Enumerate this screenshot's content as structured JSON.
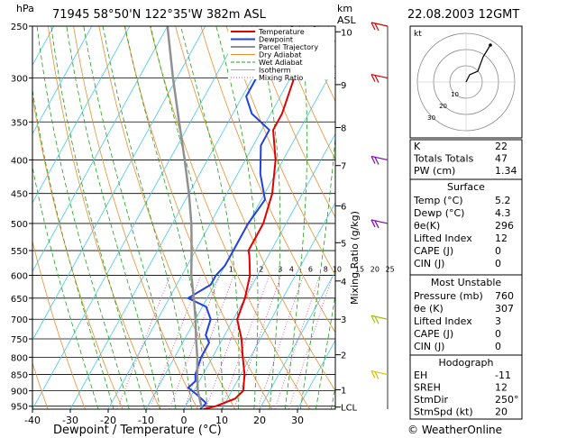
{
  "header": {
    "unit_pressure": "hPa",
    "station_line": "71945  58°50'N  122°35'W  382m  ASL",
    "unit_height": "km",
    "unit_height_2": "ASL",
    "datetime": "22.08.2003  12GMT"
  },
  "footer": {
    "xlabel": "Dewpoint / Temperature (°C)",
    "credit": "© WeatherOnline"
  },
  "chart_data": {
    "type": "line",
    "title": "71945  58°50'N  122°35'W  382m  ASL",
    "xlabel": "Dewpoint / Temperature (°C)",
    "ylabel": "hPa",
    "right_axis_label": "km ASL",
    "mixing_axis_label": "Mixing Ratio (g/kg)",
    "xlim": [
      -40,
      40
    ],
    "ylim": [
      960,
      250
    ],
    "y_scale": "log",
    "skew": true,
    "x_ticks": [
      -40,
      -30,
      -20,
      -10,
      0,
      10,
      20,
      30
    ],
    "p_ticks": [
      250,
      300,
      350,
      400,
      450,
      500,
      550,
      600,
      650,
      700,
      750,
      800,
      850,
      900,
      950
    ],
    "km_ticks": [
      {
        "label": "10",
        "p": 255
      },
      {
        "label": "9",
        "p": 307
      },
      {
        "label": "8",
        "p": 357
      },
      {
        "label": "7",
        "p": 408
      },
      {
        "label": "6",
        "p": 470
      },
      {
        "label": "5",
        "p": 535
      },
      {
        "label": "4",
        "p": 612
      },
      {
        "label": "3",
        "p": 700
      },
      {
        "label": "2",
        "p": 793
      },
      {
        "label": "1",
        "p": 897
      },
      {
        "label": "LCL",
        "p": 953
      }
    ],
    "mixing_ratio_labels": [
      {
        "label": "1",
        "x": -7
      },
      {
        "label": "2",
        "x": 1
      },
      {
        "label": "3",
        "x": 6
      },
      {
        "label": "4",
        "x": 9
      },
      {
        "label": "6",
        "x": 14
      },
      {
        "label": "8",
        "x": 18
      },
      {
        "label": "10",
        "x": 21
      },
      {
        "label": "15",
        "x": 27
      },
      {
        "label": "20",
        "x": 31
      },
      {
        "label": "25",
        "x": 35
      }
    ],
    "legend": [
      "Temperature",
      "Dewpoint",
      "Parcel Trajectory",
      "Dry Adiabat",
      "Wet Adiabat",
      "Isotherm",
      "Mixing Ratio"
    ],
    "series": [
      {
        "name": "Temperature",
        "color": "#e00000",
        "points": [
          {
            "p": 960,
            "x": 5.2
          },
          {
            "p": 950,
            "x": 8
          },
          {
            "p": 925,
            "x": 12
          },
          {
            "p": 900,
            "x": 13
          },
          {
            "p": 850,
            "x": 11
          },
          {
            "p": 800,
            "x": 8
          },
          {
            "p": 750,
            "x": 5
          },
          {
            "p": 700,
            "x": 1
          },
          {
            "p": 650,
            "x": 0
          },
          {
            "p": 600,
            "x": -2
          },
          {
            "p": 560,
            "x": -5
          },
          {
            "p": 550,
            "x": -6
          },
          {
            "p": 500,
            "x": -6
          },
          {
            "p": 450,
            "x": -8
          },
          {
            "p": 400,
            "x": -12
          },
          {
            "p": 360,
            "x": -17
          },
          {
            "p": 340,
            "x": -17
          },
          {
            "p": 300,
            "x": -19
          },
          {
            "p": 270,
            "x": -22
          },
          {
            "p": 250,
            "x": -21
          }
        ]
      },
      {
        "name": "Dewpoint",
        "color": "#2040e0",
        "points": [
          {
            "p": 960,
            "x": 4.3
          },
          {
            "p": 940,
            "x": 5
          },
          {
            "p": 910,
            "x": 1
          },
          {
            "p": 890,
            "x": -2
          },
          {
            "p": 870,
            "x": -1
          },
          {
            "p": 850,
            "x": -2
          },
          {
            "p": 800,
            "x": -3
          },
          {
            "p": 760,
            "x": -3
          },
          {
            "p": 740,
            "x": -5
          },
          {
            "p": 700,
            "x": -6
          },
          {
            "p": 670,
            "x": -9
          },
          {
            "p": 650,
            "x": -15
          },
          {
            "p": 620,
            "x": -11
          },
          {
            "p": 600,
            "x": -11
          },
          {
            "p": 580,
            "x": -10
          },
          {
            "p": 550,
            "x": -10
          },
          {
            "p": 500,
            "x": -10
          },
          {
            "p": 460,
            "x": -9
          },
          {
            "p": 420,
            "x": -14
          },
          {
            "p": 380,
            "x": -18
          },
          {
            "p": 360,
            "x": -18
          },
          {
            "p": 340,
            "x": -25
          },
          {
            "p": 320,
            "x": -29
          },
          {
            "p": 300,
            "x": -29
          },
          {
            "p": 250,
            "x": -27
          }
        ]
      },
      {
        "name": "Parcel Trajectory",
        "color": "#909090",
        "points": [
          {
            "p": 955,
            "x": 4.5
          },
          {
            "p": 900,
            "x": 1
          },
          {
            "p": 850,
            "x": -1.5
          },
          {
            "p": 800,
            "x": -4
          },
          {
            "p": 750,
            "x": -7
          },
          {
            "p": 700,
            "x": -10
          },
          {
            "p": 650,
            "x": -13.5
          },
          {
            "p": 600,
            "x": -17.5
          },
          {
            "p": 550,
            "x": -21
          },
          {
            "p": 500,
            "x": -25
          },
          {
            "p": 450,
            "x": -30
          },
          {
            "p": 400,
            "x": -36
          },
          {
            "p": 350,
            "x": -43
          },
          {
            "p": 300,
            "x": -51
          },
          {
            "p": 250,
            "x": -60
          }
        ]
      }
    ],
    "wind_barbs": [
      {
        "p": 250,
        "color": "#d00000"
      },
      {
        "p": 300,
        "color": "#d00000"
      },
      {
        "p": 400,
        "color": "#8000c0"
      },
      {
        "p": 500,
        "color": "#8000c0"
      },
      {
        "p": 700,
        "color": "#a0c000"
      },
      {
        "p": 850,
        "color": "#e0c000"
      }
    ]
  },
  "hodograph": {
    "unit": "kt",
    "ring_labels": [
      "10",
      "20",
      "30"
    ]
  },
  "indices_top": [
    {
      "label": "K",
      "value": "22"
    },
    {
      "label": "Totals Totals",
      "value": "47"
    },
    {
      "label": "PW (cm)",
      "value": "1.34"
    }
  ],
  "surface": {
    "title": "Surface",
    "rows": [
      {
        "label": "Temp (°C)",
        "value": "5.2"
      },
      {
        "label": "Dewp (°C)",
        "value": "4.3"
      },
      {
        "label": "θe(K)",
        "value": "296"
      },
      {
        "label": "Lifted Index",
        "value": "12"
      },
      {
        "label": "CAPE (J)",
        "value": "0"
      },
      {
        "label": "CIN (J)",
        "value": "0"
      }
    ]
  },
  "most_unstable": {
    "title": "Most Unstable",
    "rows": [
      {
        "label": "Pressure (mb)",
        "value": "760"
      },
      {
        "label": "θe (K)",
        "value": "307"
      },
      {
        "label": "Lifted Index",
        "value": "3"
      },
      {
        "label": "CAPE (J)",
        "value": "0"
      },
      {
        "label": "CIN (J)",
        "value": "0"
      }
    ]
  },
  "hodograph_panel": {
    "title": "Hodograph",
    "rows": [
      {
        "label": "EH",
        "value": "-11"
      },
      {
        "label": "SREH",
        "value": "12"
      },
      {
        "label": "StmDir",
        "value": "250°"
      },
      {
        "label": "StmSpd (kt)",
        "value": "20"
      }
    ]
  }
}
